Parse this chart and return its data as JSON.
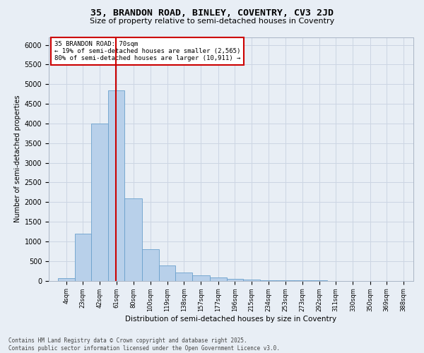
{
  "title": "35, BRANDON ROAD, BINLEY, COVENTRY, CV3 2JD",
  "subtitle": "Size of property relative to semi-detached houses in Coventry",
  "xlabel": "Distribution of semi-detached houses by size in Coventry",
  "ylabel": "Number of semi-detached properties",
  "bar_values": [
    60,
    1200,
    4000,
    4850,
    2100,
    800,
    380,
    200,
    130,
    80,
    50,
    30,
    10,
    5,
    2,
    1,
    0,
    0,
    0,
    0,
    0
  ],
  "bin_labels": [
    "4sqm",
    "23sqm",
    "42sqm",
    "61sqm",
    "80sqm",
    "100sqm",
    "119sqm",
    "138sqm",
    "157sqm",
    "177sqm",
    "196sqm",
    "215sqm",
    "234sqm",
    "253sqm",
    "273sqm",
    "292sqm",
    "311sqm",
    "330sqm",
    "350sqm",
    "369sqm",
    "388sqm"
  ],
  "bin_edges": [
    4,
    23,
    42,
    61,
    80,
    100,
    119,
    138,
    157,
    177,
    196,
    215,
    234,
    253,
    273,
    292,
    311,
    330,
    350,
    369,
    388,
    407
  ],
  "bar_color": "#b8d0ea",
  "bar_edge_color": "#6aa0cc",
  "vline_x": 70,
  "vline_color": "#cc0000",
  "annotation_title": "35 BRANDON ROAD: 70sqm",
  "annotation_line1": "← 19% of semi-detached houses are smaller (2,565)",
  "annotation_line2": "80% of semi-detached houses are larger (10,911) →",
  "annotation_box_facecolor": "#ffffff",
  "annotation_border_color": "#cc0000",
  "ylim": [
    0,
    6200
  ],
  "yticks": [
    0,
    500,
    1000,
    1500,
    2000,
    2500,
    3000,
    3500,
    4000,
    4500,
    5000,
    5500,
    6000
  ],
  "grid_color": "#ccd5e3",
  "background_color": "#e8eef5",
  "footer_line1": "Contains HM Land Registry data © Crown copyright and database right 2025.",
  "footer_line2": "Contains public sector information licensed under the Open Government Licence v3.0."
}
